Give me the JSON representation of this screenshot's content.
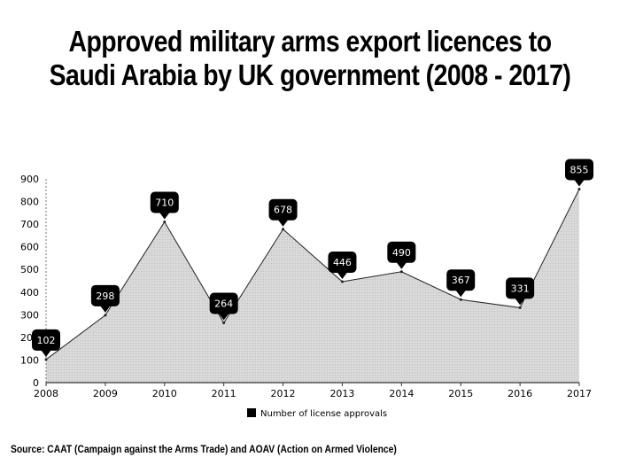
{
  "title_line1": "Approved military arms export licences to",
  "title_line2": "Saudi Arabia by UK government (2008 - 2017)",
  "source": "Source: CAAT (Campaign against the Arms Trade) and AOAV (Action on Armed Violence)",
  "chart_data": {
    "type": "area",
    "title": "Approved military arms export licences to Saudi Arabia by UK government (2008 - 2017)",
    "xlabel": "",
    "ylabel": "",
    "categories": [
      "2008",
      "2009",
      "2010",
      "2011",
      "2012",
      "2013",
      "2014",
      "2015",
      "2016",
      "2017"
    ],
    "series": [
      {
        "name": "Number of license approvals",
        "values": [
          102,
          298,
          710,
          264,
          678,
          446,
          490,
          367,
          331,
          855
        ]
      }
    ],
    "ylim": [
      0,
      900
    ],
    "yticks": [
      0,
      100,
      200,
      300,
      400,
      500,
      600,
      700,
      800,
      900
    ],
    "grid": false,
    "legend": "bottom-center",
    "colors": {
      "fill": "#d6d6d6",
      "line": "#222222",
      "label_bg": "#000000",
      "label_text": "#ffffff"
    }
  }
}
